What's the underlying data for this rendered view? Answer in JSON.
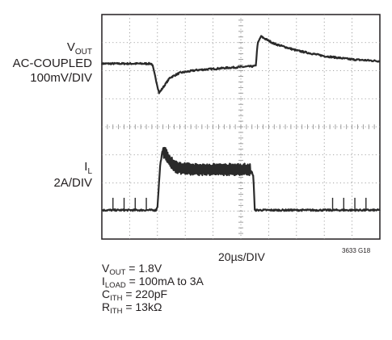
{
  "chart_data": {
    "type": "line",
    "title": "",
    "xlabel": "20µs/DIV",
    "figure_code": "3633 G18",
    "grid": true,
    "divisions": {
      "x": 10,
      "y": 8
    },
    "channels": [
      {
        "name": "VOUT",
        "label": {
          "main": "V",
          "sub": "OUT"
        },
        "label_line2": "AC-COUPLED",
        "scale": "100mV/DIV",
        "points": [
          [
            0,
            0.95
          ],
          [
            1.78,
            0.95
          ],
          [
            1.82,
            0.9
          ],
          [
            2.0,
            0.15
          ],
          [
            2.06,
            -0.1
          ],
          [
            2.2,
            0.1
          ],
          [
            2.45,
            0.45
          ],
          [
            2.8,
            0.62
          ],
          [
            3.4,
            0.72
          ],
          [
            4.5,
            0.8
          ],
          [
            5.5,
            0.86
          ],
          [
            5.54,
            0.9
          ],
          [
            5.6,
            1.65
          ],
          [
            5.72,
            1.92
          ],
          [
            6.2,
            1.66
          ],
          [
            7.0,
            1.42
          ],
          [
            8.0,
            1.22
          ],
          [
            9.0,
            1.1
          ],
          [
            10,
            1.04
          ]
        ]
      },
      {
        "name": "IL",
        "label": {
          "main": "I",
          "sub": "L"
        },
        "scale": "2A/DIV",
        "ac_ripple": {
          "from": 2.2,
          "to": 5.35
        },
        "points": [
          [
            0,
            0.18
          ],
          [
            1.95,
            0.18
          ],
          [
            2.0,
            0.3
          ],
          [
            2.1,
            1.8
          ],
          [
            2.18,
            2.28
          ],
          [
            2.3,
            2.2
          ],
          [
            2.45,
            1.9
          ],
          [
            2.7,
            1.7
          ],
          [
            3.2,
            1.63
          ],
          [
            5.35,
            1.63
          ],
          [
            5.45,
            1.4
          ],
          [
            5.5,
            0.18
          ],
          [
            10,
            0.18
          ]
        ]
      }
    ],
    "test_conditions": [
      {
        "main": "V",
        "sub": "OUT",
        "rest": " = 1.8V"
      },
      {
        "main": "I",
        "sub": "LOAD",
        "rest": " = 100mA to 3A"
      },
      {
        "main": "C",
        "sub": "ITH",
        "rest": " = 220pF"
      },
      {
        "main": "R",
        "sub": "ITH",
        "rest": " = 13kΩ"
      }
    ]
  }
}
